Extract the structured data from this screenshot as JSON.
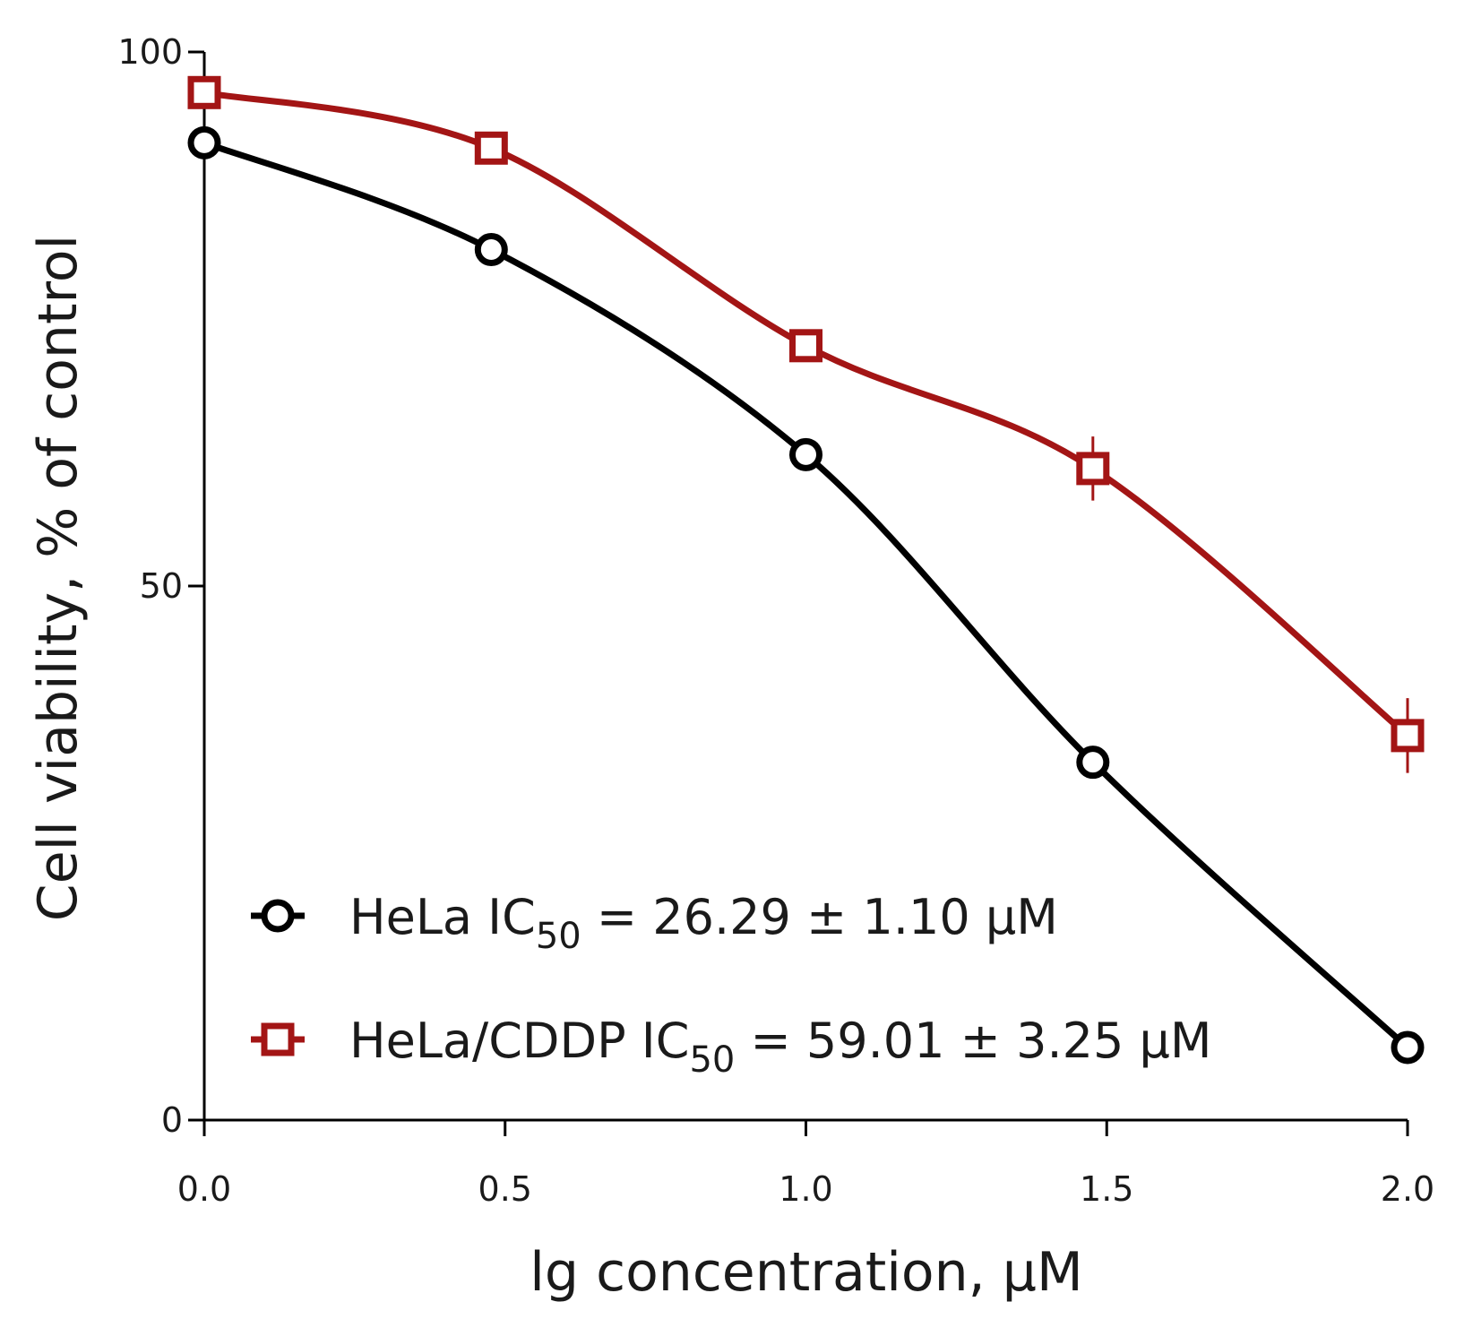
{
  "chart_data": {
    "type": "line",
    "title": "",
    "xlabel": "lg concentration, μM",
    "ylabel": "Cell viability, % of control",
    "xlim": [
      0,
      2
    ],
    "ylim": [
      0,
      100
    ],
    "x_ticks": [
      "0.0",
      "0.5",
      "1.0",
      "1.5",
      "2.0"
    ],
    "y_ticks": [
      "0",
      "50",
      "100"
    ],
    "x": [
      0,
      0.477,
      1.0,
      1.477,
      2.0
    ],
    "grid": false,
    "legend_position": "bottom-left",
    "series": [
      {
        "name": "HeLa",
        "legend_prefix": "HeLa IC",
        "legend_sub": "50",
        "legend_suffix": " = 26.29 ± 1.10 μM",
        "marker": "circle",
        "color": "#000000",
        "values": [
          91.5,
          81.5,
          62.3,
          33.5,
          6.8
        ],
        "errors": [
          0.8,
          0.8,
          0.8,
          0.8,
          0.6
        ]
      },
      {
        "name": "HeLa/CDDP",
        "legend_prefix": "HeLa/CDDP IC",
        "legend_sub": "50",
        "legend_suffix": " = 59.01 ± 3.25 μM",
        "marker": "square",
        "color": "#a31515",
        "values": [
          96.2,
          91,
          72.5,
          61,
          36
        ],
        "errors": [
          0.8,
          0.8,
          1.5,
          3.0,
          3.5
        ]
      }
    ]
  }
}
